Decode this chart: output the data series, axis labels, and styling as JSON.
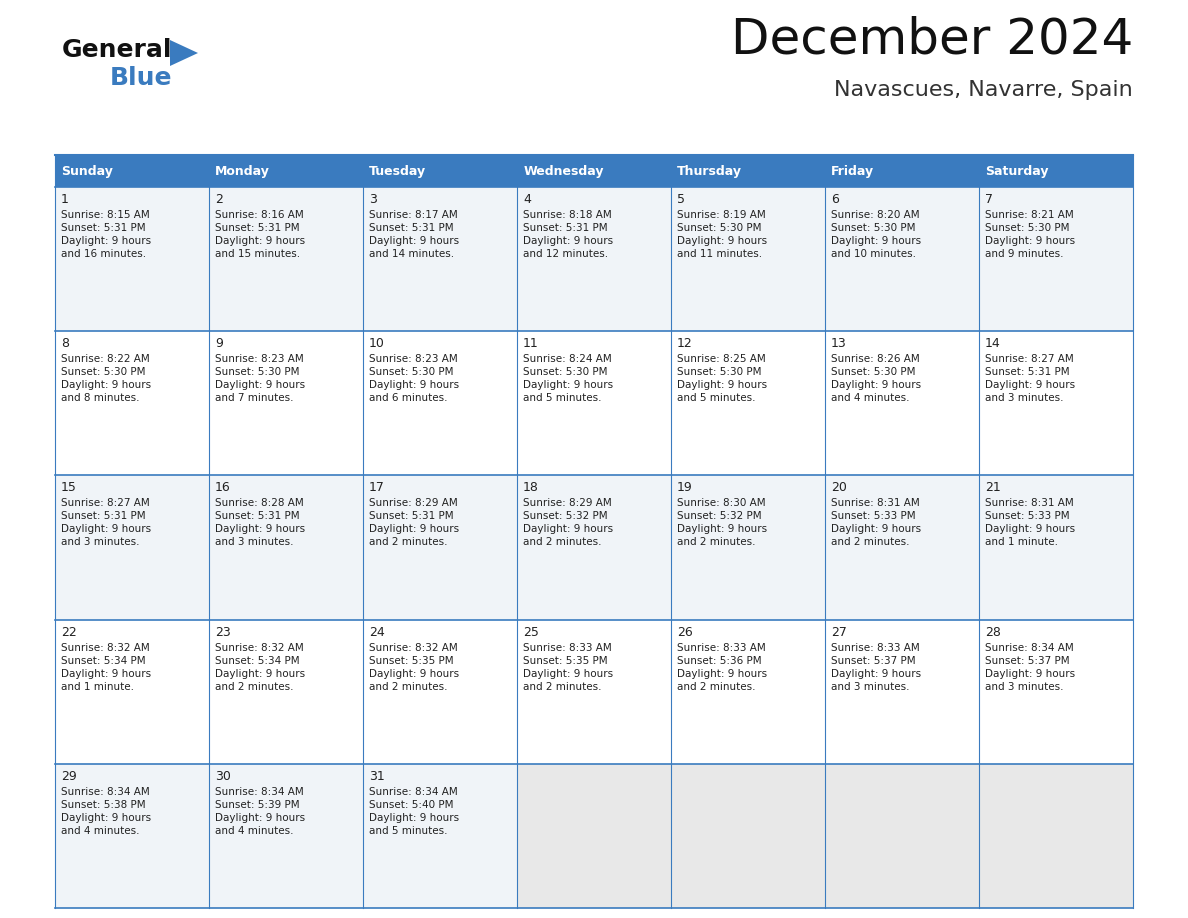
{
  "title": "December 2024",
  "subtitle": "Navascues, Navarre, Spain",
  "header_color": "#3a7bbf",
  "header_text_color": "#ffffff",
  "border_color": "#3a7bbf",
  "text_color": "#222222",
  "row_bg_even": "#f0f4f8",
  "row_bg_odd": "#ffffff",
  "empty_cell_bg": "#e8e8e8",
  "days_of_week": [
    "Sunday",
    "Monday",
    "Tuesday",
    "Wednesday",
    "Thursday",
    "Friday",
    "Saturday"
  ],
  "calendar_data": [
    [
      {
        "day": 1,
        "sunrise": "8:15 AM",
        "sunset": "5:31 PM",
        "daylight_h": "9 hours",
        "daylight_m": "and 16 minutes."
      },
      {
        "day": 2,
        "sunrise": "8:16 AM",
        "sunset": "5:31 PM",
        "daylight_h": "9 hours",
        "daylight_m": "and 15 minutes."
      },
      {
        "day": 3,
        "sunrise": "8:17 AM",
        "sunset": "5:31 PM",
        "daylight_h": "9 hours",
        "daylight_m": "and 14 minutes."
      },
      {
        "day": 4,
        "sunrise": "8:18 AM",
        "sunset": "5:31 PM",
        "daylight_h": "9 hours",
        "daylight_m": "and 12 minutes."
      },
      {
        "day": 5,
        "sunrise": "8:19 AM",
        "sunset": "5:30 PM",
        "daylight_h": "9 hours",
        "daylight_m": "and 11 minutes."
      },
      {
        "day": 6,
        "sunrise": "8:20 AM",
        "sunset": "5:30 PM",
        "daylight_h": "9 hours",
        "daylight_m": "and 10 minutes."
      },
      {
        "day": 7,
        "sunrise": "8:21 AM",
        "sunset": "5:30 PM",
        "daylight_h": "9 hours",
        "daylight_m": "and 9 minutes."
      }
    ],
    [
      {
        "day": 8,
        "sunrise": "8:22 AM",
        "sunset": "5:30 PM",
        "daylight_h": "9 hours",
        "daylight_m": "and 8 minutes."
      },
      {
        "day": 9,
        "sunrise": "8:23 AM",
        "sunset": "5:30 PM",
        "daylight_h": "9 hours",
        "daylight_m": "and 7 minutes."
      },
      {
        "day": 10,
        "sunrise": "8:23 AM",
        "sunset": "5:30 PM",
        "daylight_h": "9 hours",
        "daylight_m": "and 6 minutes."
      },
      {
        "day": 11,
        "sunrise": "8:24 AM",
        "sunset": "5:30 PM",
        "daylight_h": "9 hours",
        "daylight_m": "and 5 minutes."
      },
      {
        "day": 12,
        "sunrise": "8:25 AM",
        "sunset": "5:30 PM",
        "daylight_h": "9 hours",
        "daylight_m": "and 5 minutes."
      },
      {
        "day": 13,
        "sunrise": "8:26 AM",
        "sunset": "5:30 PM",
        "daylight_h": "9 hours",
        "daylight_m": "and 4 minutes."
      },
      {
        "day": 14,
        "sunrise": "8:27 AM",
        "sunset": "5:31 PM",
        "daylight_h": "9 hours",
        "daylight_m": "and 3 minutes."
      }
    ],
    [
      {
        "day": 15,
        "sunrise": "8:27 AM",
        "sunset": "5:31 PM",
        "daylight_h": "9 hours",
        "daylight_m": "and 3 minutes."
      },
      {
        "day": 16,
        "sunrise": "8:28 AM",
        "sunset": "5:31 PM",
        "daylight_h": "9 hours",
        "daylight_m": "and 3 minutes."
      },
      {
        "day": 17,
        "sunrise": "8:29 AM",
        "sunset": "5:31 PM",
        "daylight_h": "9 hours",
        "daylight_m": "and 2 minutes."
      },
      {
        "day": 18,
        "sunrise": "8:29 AM",
        "sunset": "5:32 PM",
        "daylight_h": "9 hours",
        "daylight_m": "and 2 minutes."
      },
      {
        "day": 19,
        "sunrise": "8:30 AM",
        "sunset": "5:32 PM",
        "daylight_h": "9 hours",
        "daylight_m": "and 2 minutes."
      },
      {
        "day": 20,
        "sunrise": "8:31 AM",
        "sunset": "5:33 PM",
        "daylight_h": "9 hours",
        "daylight_m": "and 2 minutes."
      },
      {
        "day": 21,
        "sunrise": "8:31 AM",
        "sunset": "5:33 PM",
        "daylight_h": "9 hours",
        "daylight_m": "and 1 minute."
      }
    ],
    [
      {
        "day": 22,
        "sunrise": "8:32 AM",
        "sunset": "5:34 PM",
        "daylight_h": "9 hours",
        "daylight_m": "and 1 minute."
      },
      {
        "day": 23,
        "sunrise": "8:32 AM",
        "sunset": "5:34 PM",
        "daylight_h": "9 hours",
        "daylight_m": "and 2 minutes."
      },
      {
        "day": 24,
        "sunrise": "8:32 AM",
        "sunset": "5:35 PM",
        "daylight_h": "9 hours",
        "daylight_m": "and 2 minutes."
      },
      {
        "day": 25,
        "sunrise": "8:33 AM",
        "sunset": "5:35 PM",
        "daylight_h": "9 hours",
        "daylight_m": "and 2 minutes."
      },
      {
        "day": 26,
        "sunrise": "8:33 AM",
        "sunset": "5:36 PM",
        "daylight_h": "9 hours",
        "daylight_m": "and 2 minutes."
      },
      {
        "day": 27,
        "sunrise": "8:33 AM",
        "sunset": "5:37 PM",
        "daylight_h": "9 hours",
        "daylight_m": "and 3 minutes."
      },
      {
        "day": 28,
        "sunrise": "8:34 AM",
        "sunset": "5:37 PM",
        "daylight_h": "9 hours",
        "daylight_m": "and 3 minutes."
      }
    ],
    [
      {
        "day": 29,
        "sunrise": "8:34 AM",
        "sunset": "5:38 PM",
        "daylight_h": "9 hours",
        "daylight_m": "and 4 minutes."
      },
      {
        "day": 30,
        "sunrise": "8:34 AM",
        "sunset": "5:39 PM",
        "daylight_h": "9 hours",
        "daylight_m": "and 4 minutes."
      },
      {
        "day": 31,
        "sunrise": "8:34 AM",
        "sunset": "5:40 PM",
        "daylight_h": "9 hours",
        "daylight_m": "and 5 minutes."
      },
      null,
      null,
      null,
      null
    ]
  ]
}
